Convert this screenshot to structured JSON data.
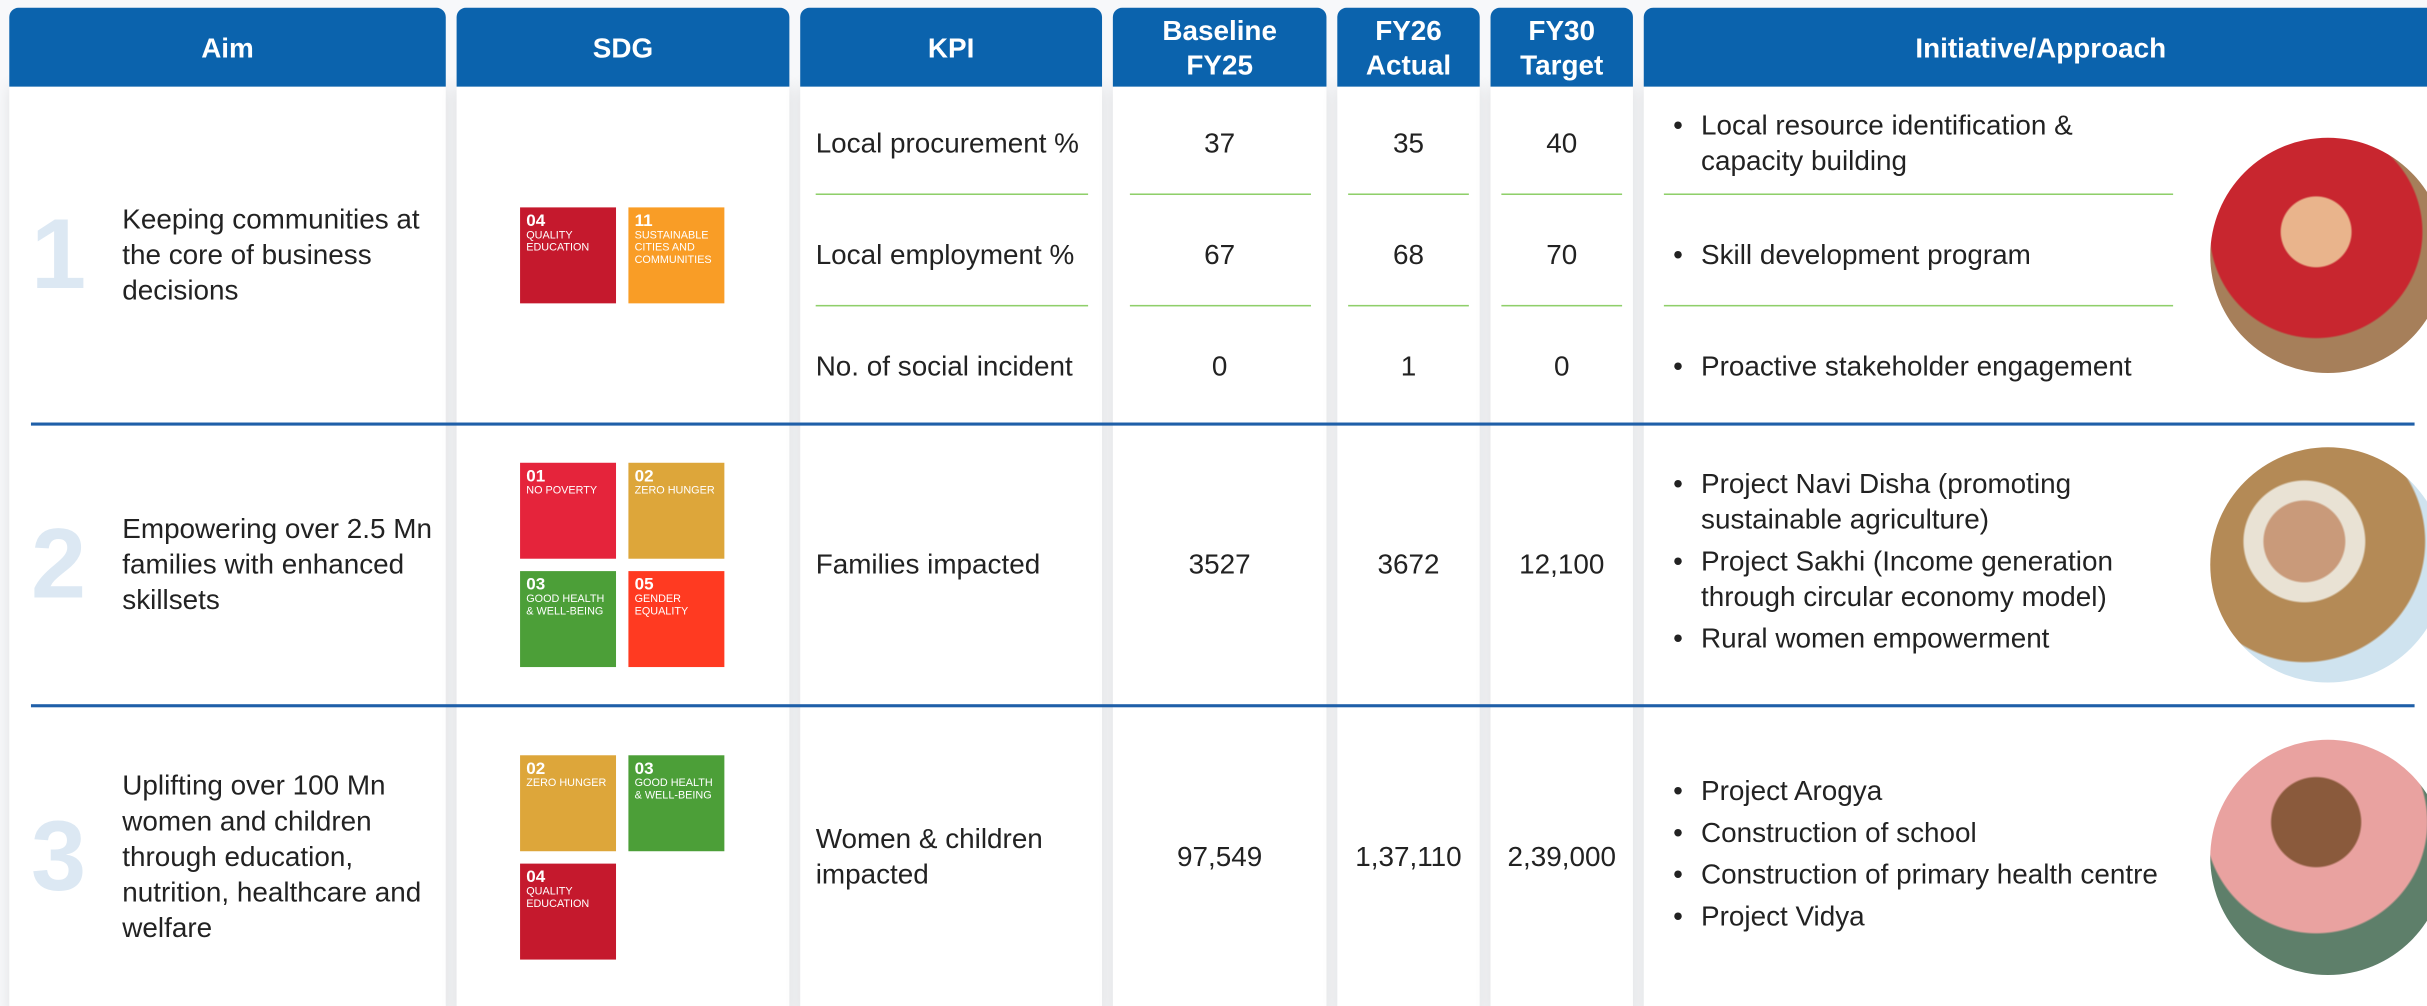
{
  "header": {
    "columns": [
      "Aim",
      "SDG",
      "KPI",
      "Baseline FY25",
      "FY26 Actual",
      "FY30 Target",
      "Initiative/Approach"
    ]
  },
  "rows": [
    {
      "number": "1",
      "aim": "Keeping communities at the core of business decisions",
      "sdgs": [
        {
          "code": "04",
          "label": "QUALITY EDUCATION",
          "color": "#c5192d"
        },
        {
          "code": "11",
          "label": "SUSTAINABLE CITIES AND COMMUNITIES",
          "color": "#f99d26"
        }
      ],
      "kpis": [
        {
          "name": "Local procurement %",
          "baseline": "37",
          "fy26": "35",
          "fy30": "40"
        },
        {
          "name": "Local employment %",
          "baseline": "67",
          "fy26": "68",
          "fy30": "70"
        },
        {
          "name": "No. of social incident",
          "baseline": "0",
          "fy26": "1",
          "fy30": "0"
        }
      ],
      "initiatives": [
        "Local resource identification & capacity building",
        "Skill development program",
        "Proactive stakeholder engagement"
      ]
    },
    {
      "number": "2",
      "aim": "Empowering over 2.5 Mn families with enhanced skillsets",
      "sdgs": [
        {
          "code": "01",
          "label": "NO POVERTY",
          "color": "#e5243b"
        },
        {
          "code": "02",
          "label": "ZERO HUNGER",
          "color": "#dda63a"
        },
        {
          "code": "03",
          "label": "GOOD HEALTH & WELL-BEING",
          "color": "#4c9f38"
        },
        {
          "code": "05",
          "label": "GENDER EQUALITY",
          "color": "#ff3a21"
        }
      ],
      "kpis": [
        {
          "name": "Families impacted",
          "baseline": "3527",
          "fy26": "3672",
          "fy30": "12,100"
        }
      ],
      "initiatives": [
        "Project Navi Disha (promoting sustainable agriculture)",
        "Project Sakhi (Income generation through circular economy model)",
        "Rural women empowerment"
      ]
    },
    {
      "number": "3",
      "aim": "Uplifting over 100 Mn women and children through education, nutrition, healthcare and welfare",
      "sdgs": [
        {
          "code": "02",
          "label": "ZERO HUNGER",
          "color": "#dda63a"
        },
        {
          "code": "03",
          "label": "GOOD HEALTH & WELL-BEING",
          "color": "#4c9f38"
        },
        {
          "code": "04",
          "label": "QUALITY EDUCATION",
          "color": "#c5192d"
        }
      ],
      "kpis": [
        {
          "name": "Women & children impacted",
          "baseline": "97,549",
          "fy26": "1,37,110",
          "fy30": "2,39,000"
        }
      ],
      "initiatives": [
        "Project Arogya",
        "Construction of school",
        "Construction of primary health centre",
        "Project Vidya"
      ]
    }
  ]
}
